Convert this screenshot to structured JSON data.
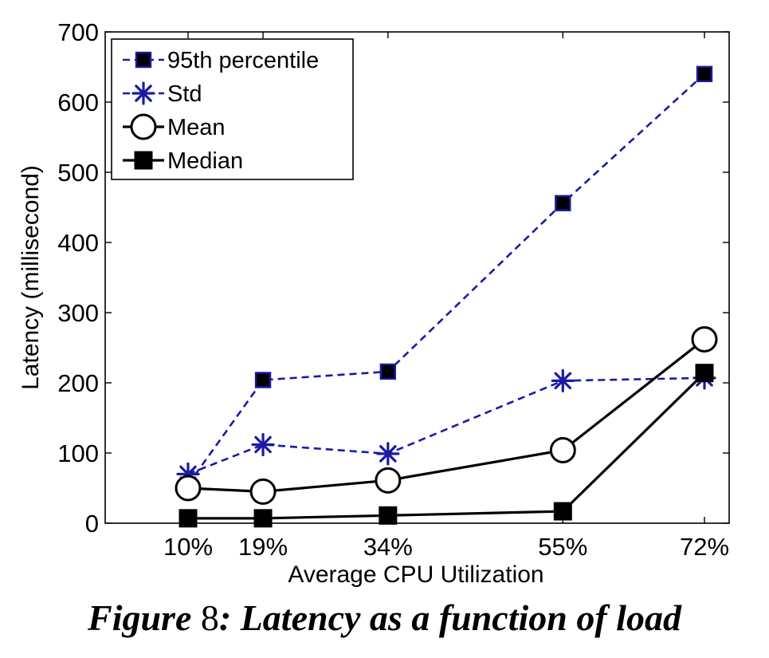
{
  "chart_data": {
    "type": "line",
    "categories": [
      "10%",
      "19%",
      "34%",
      "55%",
      "72%"
    ],
    "x": [
      10,
      19,
      34,
      55,
      72
    ],
    "xlim": [
      10,
      72
    ],
    "ylim": [
      0,
      700
    ],
    "yticks": [
      "0",
      "100",
      "200",
      "300",
      "400",
      "500",
      "600",
      "700"
    ],
    "xlabel": "Average CPU Utilization",
    "ylabel": "Latency (millisecond)",
    "legend_position": "top-left",
    "grid": false,
    "series": [
      {
        "name": "95th percentile",
        "values": [
          55,
          204,
          216,
          456,
          640
        ],
        "color": "#1a1aa6",
        "dashed": true,
        "marker": "square-small"
      },
      {
        "name": "Std",
        "values": [
          70,
          112,
          99,
          203,
          207
        ],
        "color": "#1a1aa6",
        "dashed": true,
        "marker": "asterisk"
      },
      {
        "name": "Mean",
        "values": [
          50,
          45,
          61,
          104,
          262
        ],
        "color": "#000000",
        "dashed": false,
        "marker": "circle"
      },
      {
        "name": "Median",
        "values": [
          7,
          7,
          11,
          17,
          214
        ],
        "color": "#000000",
        "dashed": false,
        "marker": "square"
      }
    ]
  },
  "caption": {
    "prefix": "Figure ",
    "number": "8",
    "text": ": Latency as a function of load"
  }
}
